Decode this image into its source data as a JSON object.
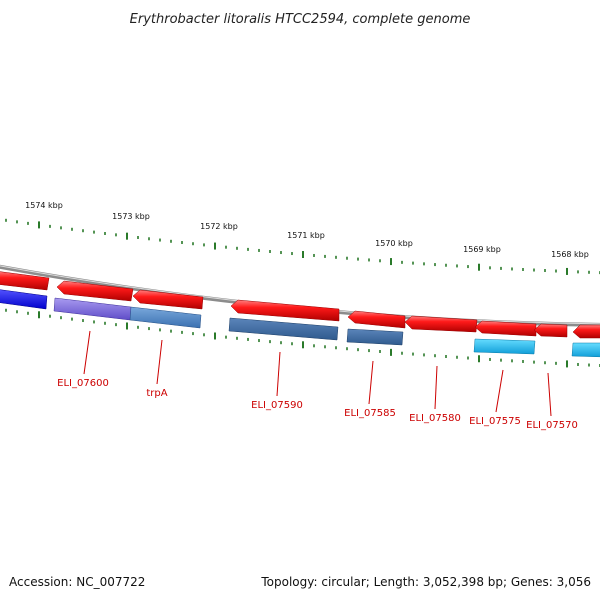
{
  "title": "Erythrobacter litoralis HTCC2594, complete genome",
  "footer": {
    "accession": "Accession: NC_007722",
    "summary": "Topology: circular; Length: 3,052,398 bp; Genes: 3,056"
  },
  "scale": {
    "labels": [
      "1574 kbp",
      "1573 kbp",
      "1572 kbp",
      "1571 kbp",
      "1570 kbp",
      "1569 kbp",
      "1568 kbp"
    ],
    "tick_color": "#2a7a2a"
  },
  "genes": [
    {
      "label": "ELI_07600",
      "strand": "reverse",
      "color": "#7b68d8"
    },
    {
      "label": "trpA",
      "strand": "reverse",
      "color": "#4a88c8"
    },
    {
      "label": "ELI_07590",
      "strand": "reverse",
      "color": "#3f6fa8"
    },
    {
      "label": "ELI_07585",
      "strand": "reverse",
      "color": "#3f6fa8"
    },
    {
      "label": "ELI_07580",
      "strand": "reverse",
      "color": "#ee1111"
    },
    {
      "label": "ELI_07575",
      "strand": "reverse",
      "color": "#22bbee"
    },
    {
      "label": "ELI_07570",
      "strand": "reverse",
      "color": "#ee1111"
    }
  ],
  "colors": {
    "backbone": "#8c8c8c",
    "forward_strand": "#ee1111",
    "gene_label": "#cc0000"
  }
}
